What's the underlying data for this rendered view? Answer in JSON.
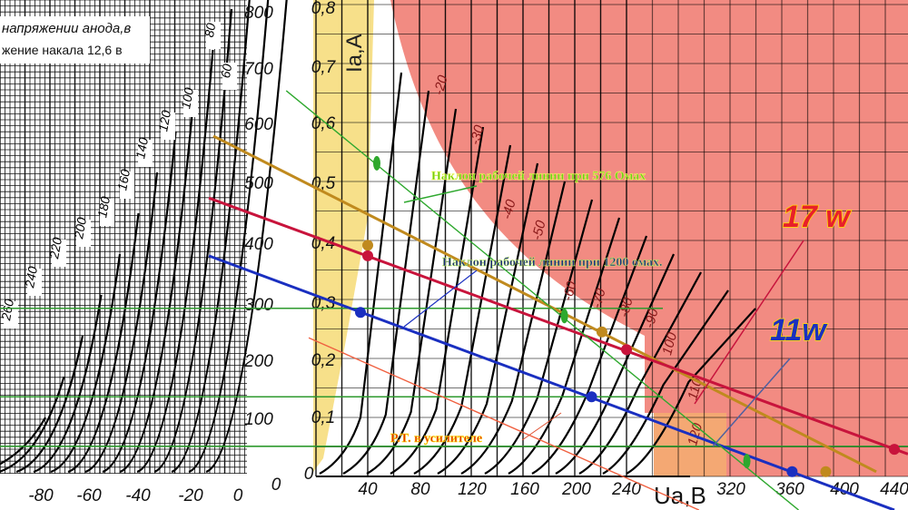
{
  "header_box": {
    "line1": "напряжении анода,в",
    "line2": "жение накала 12,6 в"
  },
  "colors": {
    "red_region": "#f28b82",
    "yellow_band": "#f7e08a",
    "orange_region": "#f4a873",
    "load_576": "#2ea82e",
    "load_orange": "#c08a1e",
    "load_crimson": "#c8143c",
    "load_blue": "#1a2fc0",
    "load_salmon": "#f06040",
    "hline": "#2e9a2e"
  },
  "chart_data": {
    "type": "line",
    "title": "",
    "left_chart": {
      "y_ticks": [
        "800",
        "700",
        "600",
        "500",
        "400",
        "300",
        "200",
        "100",
        "0"
      ],
      "x_ticks": [
        "-80",
        "-60",
        "-40",
        "-20",
        "0"
      ],
      "curve_labels": [
        "80",
        "60",
        "100",
        "120",
        "140",
        "160",
        "180",
        "200",
        "220",
        "240",
        "260"
      ]
    },
    "right_chart": {
      "xlabel": "Ua,B",
      "ylabel": "Ia,A",
      "y_ticks": [
        "0,8",
        "0,7",
        "0,6",
        "0,5",
        "0,4",
        "0,3",
        "0,2",
        "0,1",
        "0"
      ],
      "x_ticks": [
        "40",
        "80",
        "120",
        "160",
        "200",
        "240",
        "320",
        "360",
        "400",
        "440"
      ],
      "grid_curve_labels": [
        "-20",
        "-30",
        "-40",
        "-50",
        "-60",
        "-70",
        "-80",
        "-90",
        "100",
        "110",
        "120"
      ],
      "xlim": [
        0,
        450
      ],
      "ylim": [
        0,
        0.8
      ]
    },
    "series": [
      {
        "name": "load-line-orange",
        "color_key": "load_orange",
        "points": [
          [
            -79.3,
            0.577
          ],
          [
            433,
            0.008
          ]
        ],
        "markers": [
          [
            40,
            0.392
          ],
          [
            221,
            0.245
          ],
          [
            394,
            0.008
          ]
        ]
      },
      {
        "name": "load-line-crimson",
        "color_key": "load_crimson",
        "points": [
          [
            -82.8,
            0.472
          ],
          [
            457.5,
            0.038
          ]
        ],
        "markers": [
          [
            40,
            0.374
          ],
          [
            240,
            0.215
          ],
          [
            447,
            0.046
          ]
        ]
      },
      {
        "name": "load-line-blue",
        "color_key": "load_blue",
        "points": [
          [
            -82.8,
            0.374
          ],
          [
            447,
            -0.057
          ]
        ],
        "markers": [
          [
            34.4,
            0.278
          ],
          [
            213,
            0.135
          ],
          [
            368,
            0.008
          ]
        ]
      },
      {
        "name": "load-line-576-ohm",
        "color_key": "load_576",
        "points": [
          [
            -23,
            0.654
          ],
          [
            373,
            -0.057
          ]
        ],
        "markers": [
          [
            47,
            0.531
          ],
          [
            192,
            0.272
          ],
          [
            333,
            0.026
          ]
        ]
      },
      {
        "name": "load-line-salmon",
        "color_key": "load_salmon",
        "points": [
          [
            -5.6,
            0.235
          ],
          [
            296,
            -0.057
          ]
        ],
        "markers": []
      }
    ],
    "horizontal_lines_ia": [
      0.285,
      0.135,
      0.051
    ],
    "annotations": {
      "slope_576": "Наклон рабочей линии при 576 Омах",
      "slope_1200": "Наклон рабочей линии при 1200 омах.",
      "operating_point": "P.T. в усилителе",
      "power_17": "17 w",
      "power_11": "11w"
    }
  }
}
